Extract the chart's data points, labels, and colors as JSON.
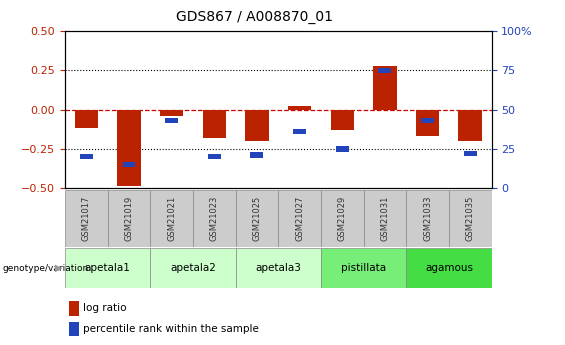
{
  "title": "GDS867 / A008870_01",
  "samples": [
    "GSM21017",
    "GSM21019",
    "GSM21021",
    "GSM21023",
    "GSM21025",
    "GSM21027",
    "GSM21029",
    "GSM21031",
    "GSM21033",
    "GSM21035"
  ],
  "log_ratio": [
    -0.12,
    -0.49,
    -0.04,
    -0.18,
    -0.2,
    0.02,
    -0.13,
    0.28,
    -0.17,
    -0.2
  ],
  "percentile_rank": [
    20,
    15,
    43,
    20,
    21,
    36,
    25,
    75,
    43,
    22
  ],
  "ylim_left": [
    -0.5,
    0.5
  ],
  "ylim_right": [
    0,
    100
  ],
  "yticks_left": [
    -0.5,
    -0.25,
    0,
    0.25,
    0.5
  ],
  "yticks_right": [
    0,
    25,
    50,
    75,
    100
  ],
  "bar_color_red": "#bb2200",
  "bar_color_blue": "#2244bb",
  "group_spans": [
    [
      0,
      1,
      "apetala1"
    ],
    [
      2,
      3,
      "apetala2"
    ],
    [
      4,
      5,
      "apetala3"
    ],
    [
      6,
      7,
      "pistillata"
    ],
    [
      8,
      9,
      "agamous"
    ]
  ],
  "group_colors": [
    "#ccffcc",
    "#ccffcc",
    "#ccffcc",
    "#77ee77",
    "#44dd44"
  ],
  "sample_box_color": "#cccccc",
  "legend_items": [
    [
      "log ratio",
      "#bb2200"
    ],
    [
      "percentile rank within the sample",
      "#2244bb"
    ]
  ]
}
